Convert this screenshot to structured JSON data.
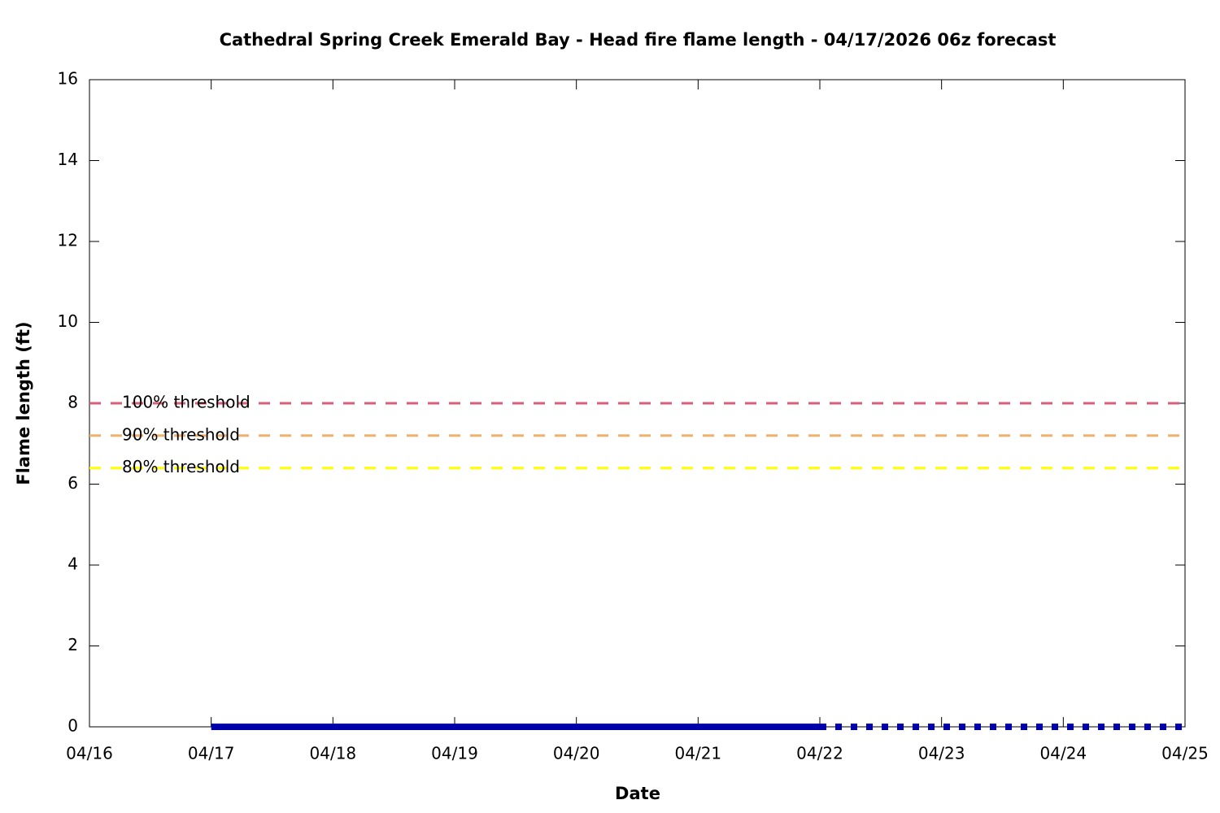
{
  "chart_data": {
    "type": "line",
    "title": "Cathedral Spring Creek Emerald Bay - Head fire flame length - 04/17/2026 06z forecast",
    "xlabel": "Date",
    "ylabel": "Flame length (ft)",
    "x": [
      "04/16",
      "04/17",
      "04/18",
      "04/19",
      "04/20",
      "04/21",
      "04/22",
      "04/23",
      "04/24",
      "04/25"
    ],
    "ylim": [
      0,
      16
    ],
    "yticks": [
      0,
      2,
      4,
      6,
      8,
      10,
      12,
      14,
      16
    ],
    "series": [
      {
        "name": "100% threshold",
        "color": "#d6607c",
        "dash": "dashed",
        "values": [
          8,
          8,
          8,
          8,
          8,
          8,
          8,
          8,
          8,
          8
        ]
      },
      {
        "name": "90% threshold",
        "color": "#f0b070",
        "dash": "dashed",
        "values": [
          7.2,
          7.2,
          7.2,
          7.2,
          7.2,
          7.2,
          7.2,
          7.2,
          7.2,
          7.2
        ]
      },
      {
        "name": "80% threshold",
        "color": "#ffff00",
        "dash": "dashed",
        "values": [
          6.4,
          6.4,
          6.4,
          6.4,
          6.4,
          6.4,
          6.4,
          6.4,
          6.4,
          6.4
        ]
      },
      {
        "color": "#0000aa",
        "dash": "solid",
        "values": [
          null,
          0,
          0,
          0,
          0,
          0,
          0,
          null,
          null,
          null
        ]
      },
      {
        "color": "#0000aa",
        "dash": "dotted",
        "values": [
          null,
          null,
          null,
          null,
          null,
          null,
          0,
          0,
          0,
          0
        ]
      }
    ]
  }
}
